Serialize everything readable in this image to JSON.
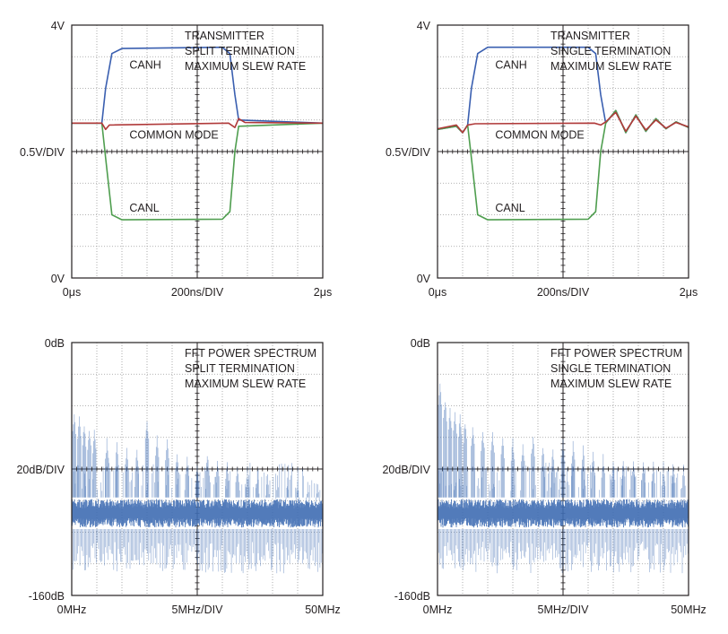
{
  "colors": {
    "grid": "#9a9a9a",
    "axis": "#231f20",
    "canh": "#3a5fb0",
    "canl": "#4f9e4f",
    "common_mode": "#b03a3a",
    "spectrum": "#3f6db3",
    "ringing_secondary": "#b03a3a"
  },
  "chart_data": [
    {
      "type": "line",
      "title_lines": [
        "TRANSMITTER",
        "SPLIT TERMINATION",
        "MAXIMUM SLEW RATE"
      ],
      "y_labels": {
        "top": "4V",
        "mid": "0.5V/DIV",
        "bottom": "0V"
      },
      "x_labels": {
        "left": "0μs",
        "mid": "200ns/DIV",
        "right": "2μs"
      },
      "xlim": [
        0,
        2
      ],
      "ylim": [
        0,
        4
      ],
      "x_unit": "μs",
      "grid": true,
      "series": [
        {
          "name": "CANH",
          "x": [
            0,
            0.24,
            0.27,
            0.32,
            0.4,
            1.2,
            1.26,
            1.3,
            1.33,
            2.0
          ],
          "y": [
            2.45,
            2.45,
            3.0,
            3.55,
            3.63,
            3.65,
            3.55,
            2.9,
            2.5,
            2.45
          ]
        },
        {
          "name": "CANL",
          "x": [
            0,
            0.24,
            0.27,
            0.32,
            0.4,
            1.2,
            1.26,
            1.3,
            1.33,
            2.0
          ],
          "y": [
            2.45,
            2.45,
            1.9,
            1.0,
            0.92,
            0.93,
            1.05,
            2.0,
            2.4,
            2.45
          ]
        },
        {
          "name": "COMMON MODE",
          "x": [
            0,
            0.24,
            0.27,
            0.3,
            1.25,
            1.3,
            1.33,
            1.38,
            2.0
          ],
          "y": [
            2.45,
            2.45,
            2.35,
            2.42,
            2.45,
            2.38,
            2.52,
            2.46,
            2.45
          ]
        }
      ]
    },
    {
      "type": "line",
      "title_lines": [
        "TRANSMITTER",
        "SINGLE TERMINATION",
        "MAXIMUM SLEW RATE"
      ],
      "y_labels": {
        "top": "4V",
        "mid": "0.5V/DIV",
        "bottom": "0V"
      },
      "x_labels": {
        "left": "0μs",
        "mid": "200ns/DIV",
        "right": "2μs"
      },
      "xlim": [
        0,
        2
      ],
      "ylim": [
        0,
        4
      ],
      "x_unit": "μs",
      "grid": true,
      "series": [
        {
          "name": "CANH",
          "x": [
            0,
            0.15,
            0.2,
            0.24,
            0.27,
            0.32,
            0.4,
            1.2,
            1.26,
            1.3,
            1.34,
            1.42,
            1.5,
            1.58,
            1.66,
            1.74,
            1.82,
            1.9,
            2.0
          ],
          "y": [
            2.35,
            2.4,
            2.3,
            2.42,
            3.0,
            3.55,
            3.65,
            3.65,
            3.55,
            2.9,
            2.45,
            2.65,
            2.3,
            2.58,
            2.32,
            2.52,
            2.36,
            2.47,
            2.38
          ]
        },
        {
          "name": "CANL",
          "x": [
            0,
            0.15,
            0.2,
            0.24,
            0.27,
            0.32,
            0.4,
            1.2,
            1.26,
            1.3,
            1.34,
            1.42,
            1.5,
            1.58,
            1.66,
            1.74,
            1.82,
            1.9,
            2.0
          ],
          "y": [
            2.35,
            2.4,
            2.3,
            2.42,
            1.9,
            1.0,
            0.92,
            0.93,
            1.05,
            2.0,
            2.45,
            2.65,
            2.3,
            2.58,
            2.32,
            2.52,
            2.36,
            2.47,
            2.38
          ]
        },
        {
          "name": "COMMON MODE",
          "x": [
            0,
            0.15,
            0.2,
            0.24,
            0.3,
            1.25,
            1.3,
            1.34,
            1.42,
            1.5,
            1.58,
            1.66,
            1.74,
            1.82,
            1.9,
            2.0
          ],
          "y": [
            2.36,
            2.42,
            2.3,
            2.42,
            2.44,
            2.45,
            2.42,
            2.47,
            2.62,
            2.32,
            2.56,
            2.34,
            2.5,
            2.37,
            2.46,
            2.39
          ]
        }
      ]
    },
    {
      "type": "line",
      "title_lines": [
        "FFT POWER SPECTRUM",
        "SPLIT TERMINATION",
        "MAXIMUM SLEW RATE"
      ],
      "y_labels": {
        "top": "0dB",
        "mid": "20dB/DIV",
        "bottom": "-160dB"
      },
      "x_labels": {
        "left": "0MHz",
        "mid": "5MHz/DIV",
        "right": "50MHz"
      },
      "xlim": [
        0,
        50
      ],
      "ylim": [
        -160,
        0
      ],
      "x_unit": "MHz",
      "grid": true,
      "noise_floor_band": [
        -118,
        -98
      ],
      "series": [
        {
          "name": "",
          "harmonics_mhz": [
            0.5,
            1.5,
            2.5,
            3.5,
            4.5,
            7,
            9,
            11,
            13,
            15,
            17,
            19,
            21,
            23,
            25,
            27,
            29,
            31,
            33,
            35,
            37,
            39,
            41,
            43,
            45,
            47,
            49
          ],
          "peak_db": [
            -42,
            -46,
            -50,
            -52,
            -55,
            -60,
            -63,
            -65,
            -66,
            -48,
            -58,
            -60,
            -67,
            -70,
            -75,
            -68,
            -72,
            -74,
            -76,
            -78,
            -80,
            -82,
            -84,
            -85,
            -86,
            -88,
            -88
          ]
        }
      ]
    },
    {
      "type": "line",
      "title_lines": [
        "FFT POWER SPECTRUM",
        "SINGLE TERMINATION",
        "MAXIMUM SLEW RATE"
      ],
      "y_labels": {
        "top": "0dB",
        "mid": "20dB/DIV",
        "bottom": "-160dB"
      },
      "x_labels": {
        "left": "0MHz",
        "mid": "5MHz/DIV",
        "right": "50MHz"
      },
      "xlim": [
        0,
        50
      ],
      "ylim": [
        -160,
        0
      ],
      "x_unit": "MHz",
      "grid": true,
      "noise_floor_band": [
        -118,
        -98
      ],
      "series": [
        {
          "name": "",
          "harmonics_mhz": [
            0.5,
            1.5,
            2.5,
            3.5,
            4.5,
            5.5,
            7,
            9,
            11,
            13,
            15,
            17,
            19,
            21,
            23,
            25,
            27,
            29,
            31,
            33,
            35,
            37,
            39,
            41,
            43,
            45,
            47,
            49
          ],
          "peak_db": [
            -25,
            -35,
            -40,
            -42,
            -45,
            -48,
            -52,
            -54,
            -56,
            -58,
            -60,
            -62,
            -58,
            -64,
            -66,
            -60,
            -62,
            -65,
            -68,
            -70,
            -72,
            -72,
            -72,
            -74,
            -74,
            -75,
            -76,
            -76
          ]
        }
      ]
    }
  ]
}
